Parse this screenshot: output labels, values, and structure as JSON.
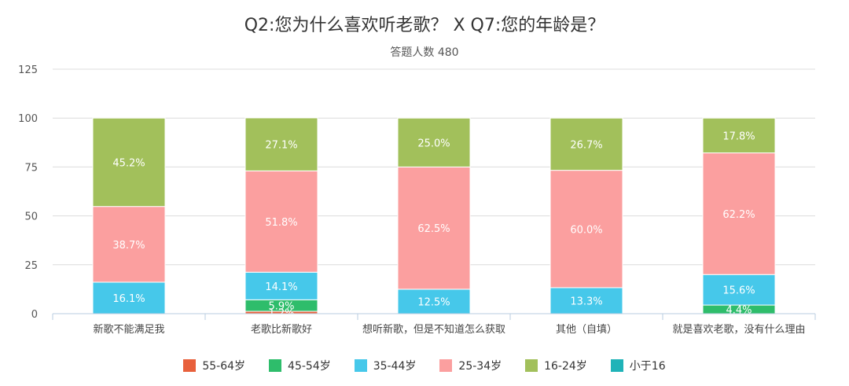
{
  "chart_data": {
    "type": "bar",
    "stacked": true,
    "title": "Q2:您为什么喜欢听老歌？ X Q7:您的年龄是？",
    "subtitle": "答题人数 480",
    "categories": [
      "新歌不能满足我",
      "老歌比新歌好",
      "想听新歌，但是不知道怎么获取",
      "其他（自填）",
      "就是喜欢老歌，没有什么理由"
    ],
    "ylim": [
      0,
      125
    ],
    "yticks": [
      0,
      25,
      50,
      75,
      100,
      125
    ],
    "grid": true,
    "legend_position": "bottom",
    "series": [
      {
        "name": "55-64岁",
        "color": "#e8603c",
        "values": [
          0,
          1.2,
          0,
          0,
          0
        ]
      },
      {
        "name": "45-54岁",
        "color": "#2ebd6b",
        "values": [
          0,
          5.9,
          0,
          0,
          4.4
        ]
      },
      {
        "name": "35-44岁",
        "color": "#46c8ea",
        "values": [
          16.1,
          14.1,
          12.5,
          13.3,
          15.6
        ]
      },
      {
        "name": "25-34岁",
        "color": "#fb9f9f",
        "values": [
          38.7,
          51.8,
          62.5,
          60.0,
          62.2
        ]
      },
      {
        "name": "16-24岁",
        "color": "#a2c05b",
        "values": [
          45.2,
          27.1,
          25.0,
          26.7,
          17.8
        ]
      },
      {
        "name": "小于16",
        "color": "#1fb3b8",
        "values": [
          0,
          0,
          0,
          0,
          0
        ]
      }
    ],
    "data_labels": [
      [
        "",
        "",
        "16.1%",
        "38.7%",
        "45.2%",
        ""
      ],
      [
        "1.2%",
        "5.9%",
        "14.1%",
        "51.8%",
        "27.1%",
        ""
      ],
      [
        "",
        "",
        "12.5%",
        "62.5%",
        "25.0%",
        ""
      ],
      [
        "",
        "",
        "13.3%",
        "60.0%",
        "26.7%",
        ""
      ],
      [
        "",
        "4.4%",
        "15.6%",
        "62.2%",
        "17.8%",
        ""
      ]
    ]
  }
}
